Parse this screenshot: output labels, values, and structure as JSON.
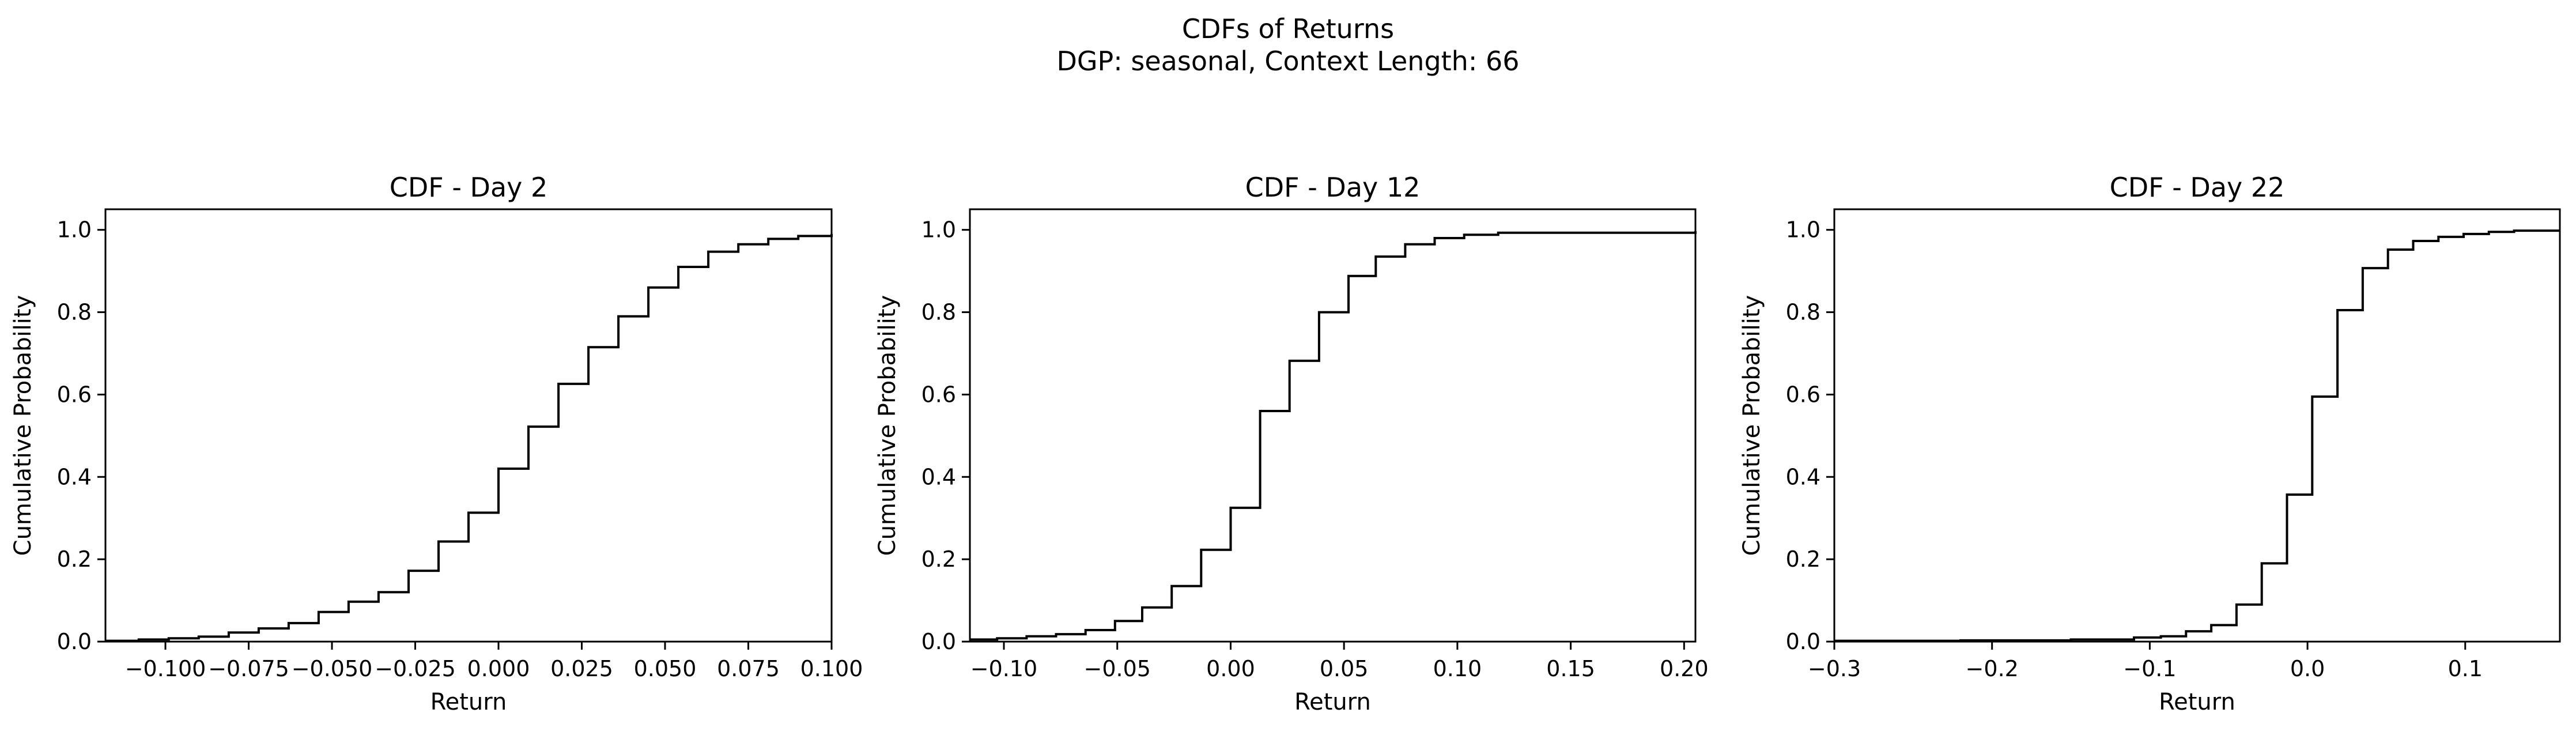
{
  "figure": {
    "title": "CDFs of Returns",
    "subtitle": "DGP: seasonal, Context Length: 66"
  },
  "chart_data": [
    {
      "type": "line",
      "step": true,
      "title": "CDF - Day 2",
      "xlabel": "Return",
      "ylabel": "Cumulative Probability",
      "xlim": [
        -0.118,
        0.1
      ],
      "ylim": [
        0,
        1.05
      ],
      "xticks": [
        -0.1,
        -0.075,
        -0.05,
        -0.025,
        0.0,
        0.025,
        0.05,
        0.075,
        0.1
      ],
      "xtick_labels": [
        "−0.100",
        "−0.075",
        "−0.050",
        "−0.025",
        "0.000",
        "0.025",
        "0.050",
        "0.075",
        "0.100"
      ],
      "yticks": [
        0.0,
        0.2,
        0.4,
        0.6,
        0.8,
        1.0
      ],
      "ytick_labels": [
        "0.0",
        "0.2",
        "0.4",
        "0.6",
        "0.8",
        "1.0"
      ],
      "grid": false,
      "legend": "none",
      "x": [
        -0.118,
        -0.108,
        -0.099,
        -0.09,
        -0.081,
        -0.072,
        -0.063,
        -0.054,
        -0.045,
        -0.036,
        -0.027,
        -0.018,
        -0.009,
        0.0,
        0.009,
        0.018,
        0.027,
        0.036,
        0.045,
        0.054,
        0.063,
        0.072,
        0.081,
        0.09,
        0.1
      ],
      "y": [
        0.002,
        0.005,
        0.008,
        0.012,
        0.022,
        0.032,
        0.045,
        0.072,
        0.097,
        0.12,
        0.172,
        0.243,
        0.313,
        0.42,
        0.522,
        0.626,
        0.715,
        0.79,
        0.86,
        0.91,
        0.947,
        0.965,
        0.978,
        0.985,
        0.99
      ]
    },
    {
      "type": "line",
      "step": true,
      "title": "CDF - Day 12",
      "xlabel": "Return",
      "ylabel": "Cumulative Probability",
      "xlim": [
        -0.115,
        0.205
      ],
      "ylim": [
        0,
        1.05
      ],
      "xticks": [
        -0.1,
        -0.05,
        0.0,
        0.05,
        0.1,
        0.15,
        0.2
      ],
      "xtick_labels": [
        "−0.10",
        "−0.05",
        "0.00",
        "0.05",
        "0.10",
        "0.15",
        "0.20"
      ],
      "yticks": [
        0.0,
        0.2,
        0.4,
        0.6,
        0.8,
        1.0
      ],
      "ytick_labels": [
        "0.0",
        "0.2",
        "0.4",
        "0.6",
        "0.8",
        "1.0"
      ],
      "grid": false,
      "legend": "none",
      "x": [
        -0.115,
        -0.103,
        -0.09,
        -0.077,
        -0.064,
        -0.051,
        -0.039,
        -0.026,
        -0.013,
        0.0,
        0.013,
        0.026,
        0.039,
        0.052,
        0.064,
        0.077,
        0.09,
        0.103,
        0.118,
        0.205
      ],
      "y": [
        0.005,
        0.008,
        0.013,
        0.018,
        0.028,
        0.05,
        0.083,
        0.135,
        0.223,
        0.325,
        0.56,
        0.682,
        0.8,
        0.888,
        0.935,
        0.965,
        0.98,
        0.988,
        0.993,
        0.997
      ]
    },
    {
      "type": "line",
      "step": true,
      "title": "CDF - Day 22",
      "xlabel": "Return",
      "ylabel": "Cumulative Probability",
      "xlim": [
        -0.3,
        0.16
      ],
      "ylim": [
        0,
        1.05
      ],
      "xticks": [
        -0.3,
        -0.2,
        -0.1,
        0.0,
        0.1
      ],
      "xtick_labels": [
        "−0.3",
        "−0.2",
        "−0.1",
        "0.0",
        "0.1"
      ],
      "yticks": [
        0.0,
        0.2,
        0.4,
        0.6,
        0.8,
        1.0
      ],
      "ytick_labels": [
        "0.0",
        "0.2",
        "0.4",
        "0.6",
        "0.8",
        "1.0"
      ],
      "grid": false,
      "legend": "none",
      "x": [
        -0.3,
        -0.22,
        -0.15,
        -0.11,
        -0.093,
        -0.077,
        -0.061,
        -0.045,
        -0.029,
        -0.013,
        0.003,
        0.019,
        0.035,
        0.051,
        0.067,
        0.083,
        0.099,
        0.115,
        0.131
      ],
      "y": [
        0.002,
        0.003,
        0.005,
        0.01,
        0.013,
        0.025,
        0.04,
        0.09,
        0.19,
        0.357,
        0.595,
        0.805,
        0.907,
        0.952,
        0.973,
        0.983,
        0.99,
        0.995,
        0.998
      ]
    }
  ]
}
